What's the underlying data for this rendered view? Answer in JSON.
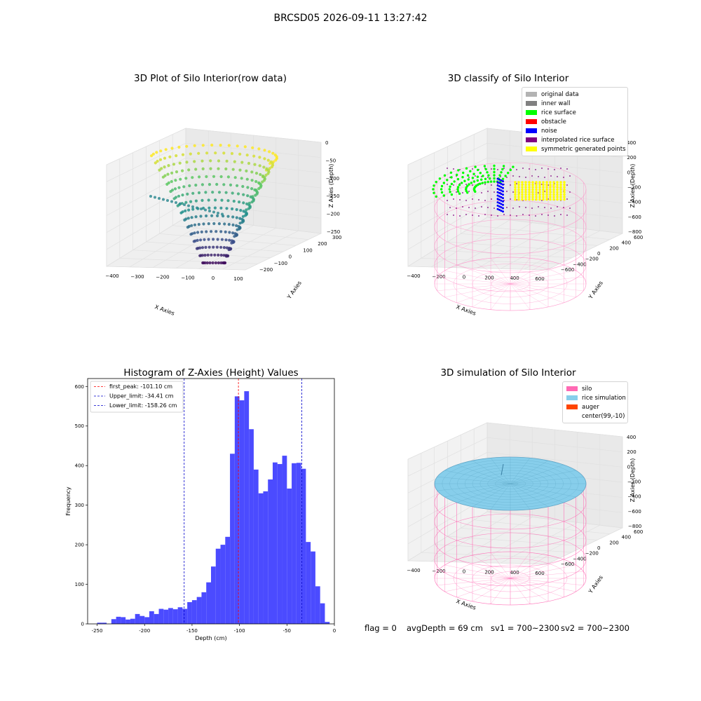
{
  "suptitle": "BRCSD05 2026-09-11 13:27:42",
  "footer": {
    "flag": "flag = 0",
    "avg_depth": "avgDepth = 69 cm",
    "sv1": "sv1 = 700~2300",
    "sv2": "sv2 = 700~2300"
  },
  "chart_data": [
    {
      "type": "scatter",
      "subtype": "3d-scatter",
      "title": "3D Plot of Silo Interior(row data)",
      "xlabel": "X Axies",
      "ylabel": "Y Axies",
      "zlabel": "Z Axies (Depth)",
      "x_ticks": [
        "−400",
        "−300",
        "−200",
        "−100",
        "0",
        "100"
      ],
      "y_ticks": [
        "−200",
        "−100",
        "0",
        "100",
        "200",
        "300"
      ],
      "z_ticks": [
        "0",
        "−50",
        "−100",
        "−150",
        "−200",
        "−250"
      ],
      "colormap": "viridis"
    },
    {
      "type": "scatter",
      "subtype": "3d-scatter",
      "title": "3D classify of Silo Interior",
      "xlabel": "X Axies",
      "ylabel": "Y Axies",
      "zlabel": "Z Axies (Depth)",
      "x_ticks": [
        "−400",
        "−200",
        "0",
        "200",
        "400",
        "600"
      ],
      "y_ticks": [
        "−600",
        "−400",
        "−200",
        "0",
        "200",
        "400",
        "600"
      ],
      "z_ticks": [
        "400",
        "200",
        "0",
        "−200",
        "−400",
        "−600",
        "−800"
      ],
      "legend": [
        {
          "label": "original data",
          "color": "#b3b3b3"
        },
        {
          "label": "inner wall",
          "color": "#808080"
        },
        {
          "label": "rice surface",
          "color": "#00ff00"
        },
        {
          "label": "obstacle",
          "color": "#ff0000"
        },
        {
          "label": "noise",
          "color": "#0000ff"
        },
        {
          "label": "interpolated rice surface",
          "color": "#800080"
        },
        {
          "label": "symmetric generated points",
          "color": "#ffff00"
        }
      ],
      "legend_position": "top-right"
    },
    {
      "type": "bar",
      "subtype": "histogram",
      "title": "Histogram of Z-Axies (Height) Values",
      "xlabel": "Depth (cm)",
      "ylabel": "Frequency",
      "xlim": [
        -260,
        0
      ],
      "ylim": [
        0,
        620
      ],
      "x_ticks": [
        -250,
        -200,
        -150,
        -100,
        -50,
        0
      ],
      "y_ticks": [
        0,
        100,
        200,
        300,
        400,
        500,
        600
      ],
      "bin_width": 5,
      "bin_start": -250,
      "values": [
        3,
        3,
        0,
        12,
        18,
        17,
        11,
        13,
        25,
        20,
        17,
        32,
        25,
        38,
        36,
        40,
        37,
        42,
        38,
        55,
        60,
        68,
        80,
        105,
        145,
        190,
        200,
        220,
        430,
        575,
        565,
        588,
        492,
        390,
        330,
        335,
        365,
        408,
        404,
        425,
        342,
        406,
        407,
        392,
        207,
        183,
        95,
        52,
        5
      ],
      "bar_color": "#4b4bff",
      "vlines": [
        {
          "label": "first_peak: -101.10 cm",
          "x": -101.1,
          "color": "#ff0000"
        },
        {
          "label": "Upper_limit: -34.41 cm",
          "x": -34.41,
          "color": "#0000cc"
        },
        {
          "label": "Lower_limit: -158.26 cm",
          "x": -158.26,
          "color": "#0000cc"
        }
      ],
      "legend_position": "top-left"
    },
    {
      "type": "scatter",
      "subtype": "3d-surface",
      "title": "3D simulation of Silo Interior",
      "xlabel": "X Axies",
      "ylabel": "Y Axies",
      "zlabel": "Z Axies (Depth)",
      "x_ticks": [
        "−400",
        "−200",
        "0",
        "200",
        "400",
        "600"
      ],
      "y_ticks": [
        "−600",
        "−400",
        "−200",
        "0",
        "200",
        "400",
        "600"
      ],
      "z_ticks": [
        "400",
        "200",
        "0",
        "−200",
        "−400",
        "−600",
        "−800"
      ],
      "legend": [
        {
          "label": "silo",
          "color": "#ff69b4"
        },
        {
          "label": "rice simulation",
          "color": "#87ceeb"
        },
        {
          "label": "auger",
          "color": "#ff4500"
        },
        {
          "label": "center(99,-10)",
          "color": ""
        }
      ],
      "legend_position": "top-right"
    }
  ]
}
